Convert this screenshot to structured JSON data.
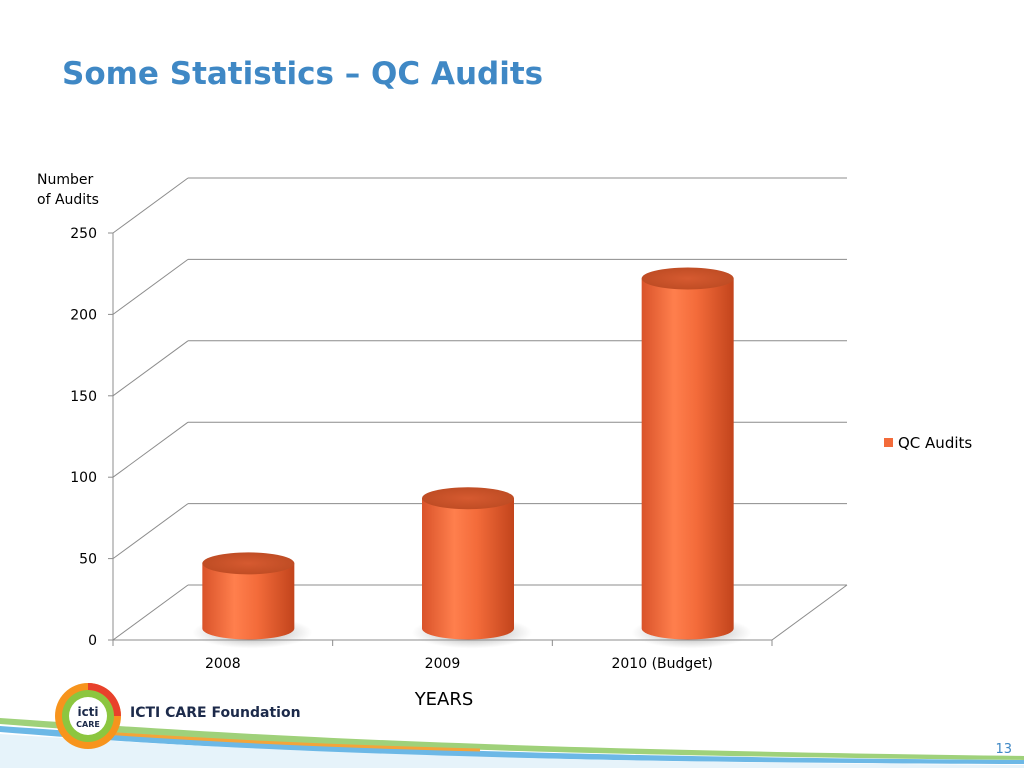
{
  "slide": {
    "title": "Some Statistics – QC Audits",
    "page_number": "13",
    "logo_text": "ICTI CARE Foundation",
    "logo_mark_top": "icti",
    "logo_mark_bottom": "CARE"
  },
  "colors": {
    "title": "#3f88c5",
    "bar": "#f36b3a",
    "bar_dark": "#c9481e",
    "grid": "#8c8c8c"
  },
  "chart_data": {
    "type": "bar",
    "style": "3d-cylinder",
    "categories": [
      "2008",
      "2009",
      "2010 (Budget)"
    ],
    "series": [
      {
        "name": "QC Audits",
        "values": [
          40,
          80,
          215
        ]
      }
    ],
    "ylabel": "Number of Audits",
    "ylabel_lines": [
      "Number",
      "of Audits"
    ],
    "xlabel": "YEARS",
    "ylim": [
      0,
      250
    ],
    "yticks": [
      0,
      50,
      100,
      150,
      200,
      250
    ],
    "grid": true,
    "legend_position": "right"
  }
}
